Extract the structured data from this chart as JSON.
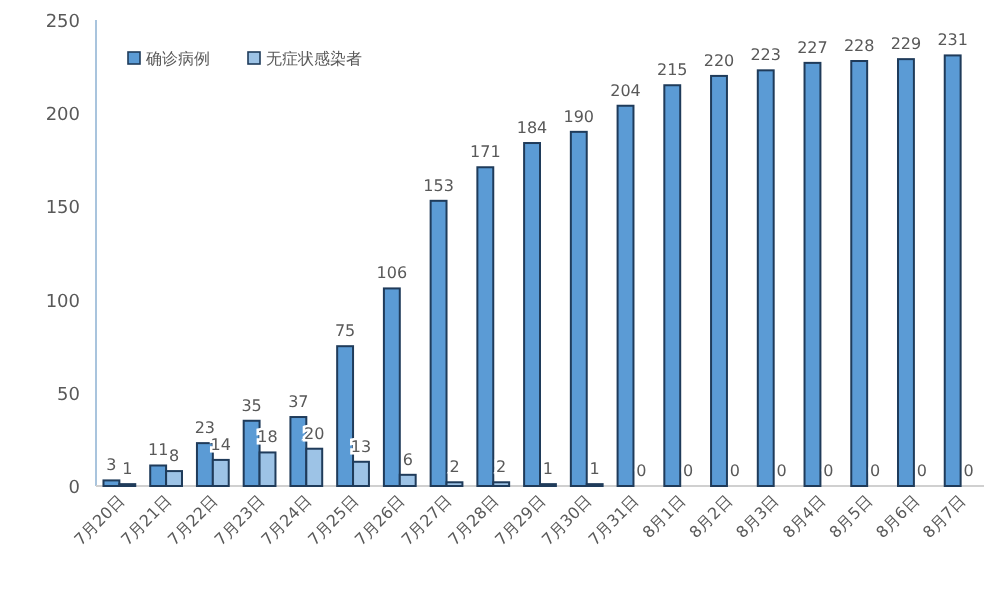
{
  "chart_data": {
    "type": "bar",
    "categories": [
      "7月20日",
      "7月21日",
      "7月22日",
      "7月23日",
      "7月24日",
      "7月25日",
      "7月26日",
      "7月27日",
      "7月28日",
      "7月29日",
      "7月30日",
      "7月31日",
      "8月1日",
      "8月2日",
      "8月3日",
      "8月4日",
      "8月5日",
      "8月6日",
      "8月7日"
    ],
    "series": [
      {
        "name": "确诊病例",
        "color": "#5b9bd5",
        "values": [
          3,
          11,
          23,
          35,
          37,
          75,
          106,
          153,
          171,
          184,
          190,
          204,
          215,
          220,
          223,
          227,
          228,
          229,
          231
        ]
      },
      {
        "name": "无症状感染者",
        "color": "#9dc3e6",
        "values": [
          1,
          8,
          14,
          18,
          20,
          13,
          6,
          2,
          2,
          1,
          1,
          0,
          0,
          0,
          0,
          0,
          0,
          0,
          0
        ]
      }
    ],
    "ylim": [
      0,
      250
    ],
    "yticks": [
      0,
      50,
      100,
      150,
      200,
      250
    ],
    "grid": false,
    "legend": "top left",
    "data_labels": true
  }
}
